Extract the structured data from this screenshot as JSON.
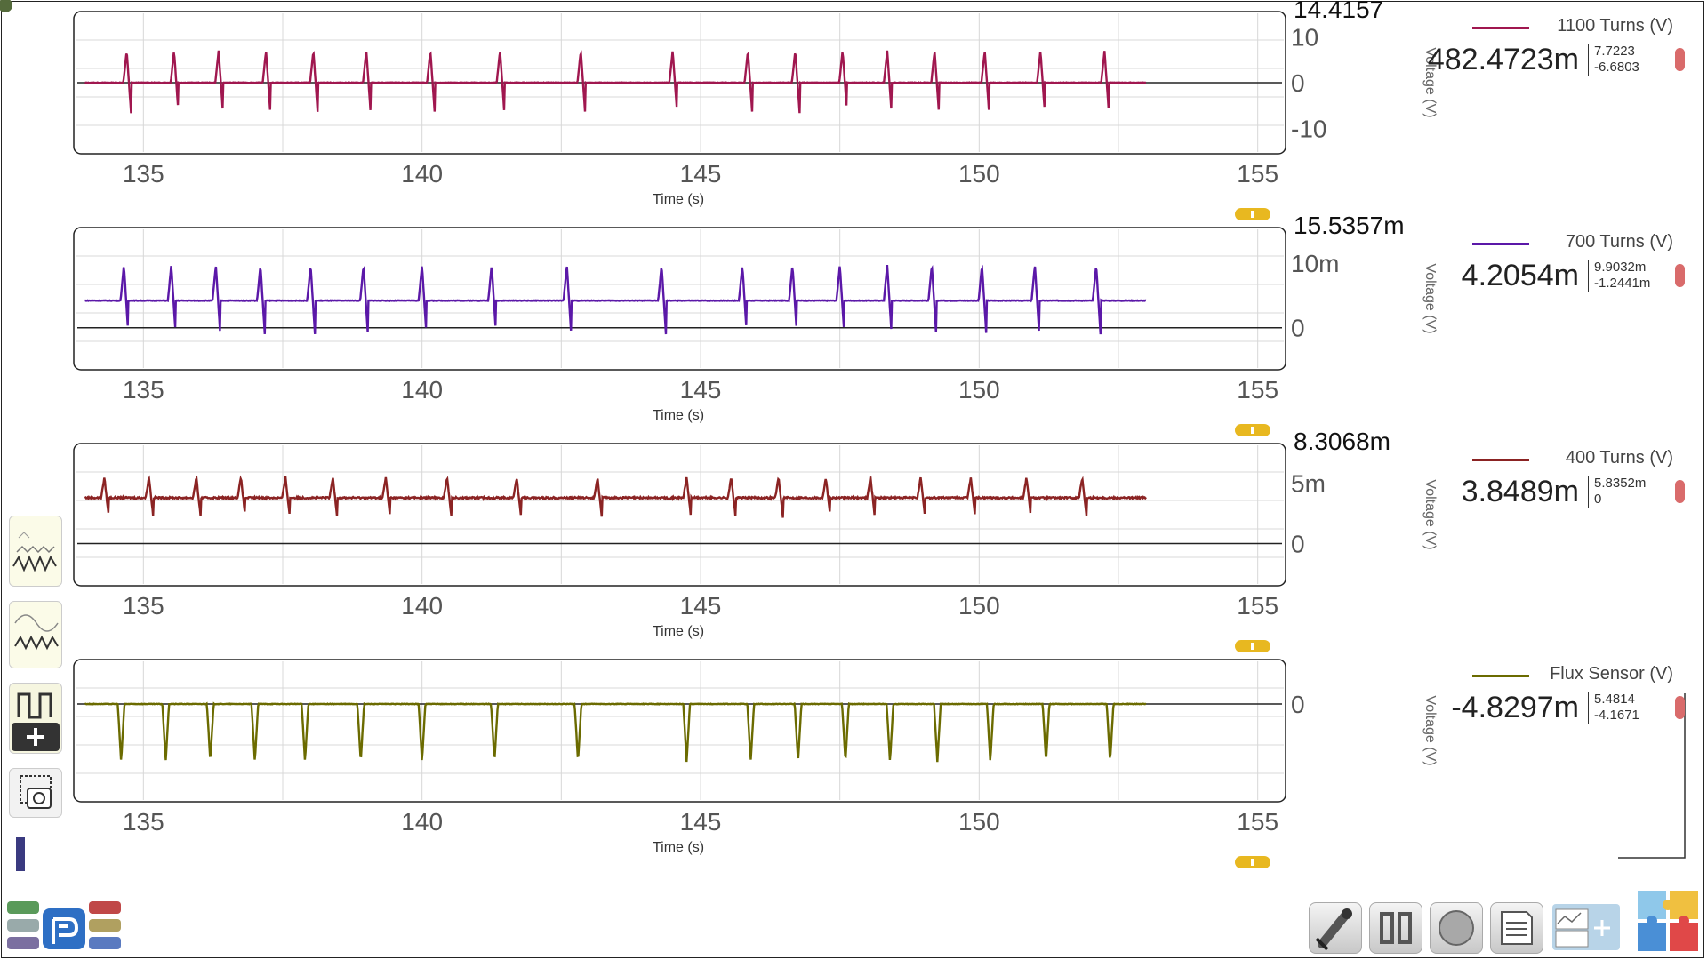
{
  "x_axis": {
    "label": "Time (s)",
    "ticks": [
      "135",
      "140",
      "145",
      "150",
      "155"
    ],
    "xlim": [
      133.75,
      155.5
    ]
  },
  "y_axis_title": "Voltage (V)",
  "charts": [
    {
      "name": "1100 Turns (V)",
      "color": "#a0174f",
      "max_label": "14.4157",
      "y_ticks": [
        "10",
        "0",
        "-10"
      ],
      "y_tick_values": [
        10,
        0,
        -10
      ],
      "ylim": [
        -15.5,
        15.5
      ],
      "reading": "482.4723m",
      "max": "7.7223",
      "min": "-6.6803"
    },
    {
      "name": "700 Turns (V)",
      "color": "#5b18a8",
      "max_label": "15.5357m",
      "y_ticks": [
        "10m",
        "0"
      ],
      "y_tick_values": [
        0.01,
        0
      ],
      "ylim": [
        -0.0065,
        0.0155
      ],
      "reading": "4.2054m",
      "max": "9.9032m",
      "min": "-1.2441m"
    },
    {
      "name": "400 Turns (V)",
      "color": "#8b2323",
      "max_label": "8.3068m",
      "y_ticks": [
        "5m",
        "0"
      ],
      "y_tick_values": [
        0.005,
        0
      ],
      "ylim": [
        -0.0035,
        0.0083
      ],
      "reading": "3.8489m",
      "max": "5.8352m",
      "min": "0"
    },
    {
      "name": "Flux Sensor (V)",
      "color": "#6b6b00",
      "max_label": "",
      "y_ticks": [
        "0"
      ],
      "y_tick_values": [
        0
      ],
      "ylim": [
        -2.2,
        1.0
      ],
      "reading": "-4.8297m",
      "max": "5.4814",
      "min": "-4.1671"
    }
  ],
  "chart_data": [
    {
      "type": "line",
      "xlabel": "Time (s)",
      "ylabel": "Voltage (V)",
      "series": [
        {
          "name": "1100 Turns (V)",
          "baseline": 0.0,
          "spike_amplitude": 7.0
        }
      ],
      "xlim": [
        133.75,
        155.5
      ],
      "ylim": [
        -15.5,
        15.5
      ],
      "data_end": 153.0,
      "spike_times": [
        134.7,
        135.55,
        136.35,
        137.2,
        138.05,
        139.0,
        140.15,
        141.4,
        142.85,
        144.5,
        145.85,
        146.7,
        147.55,
        148.35,
        149.2,
        150.1,
        151.1,
        152.25
      ],
      "grid": true
    },
    {
      "type": "line",
      "xlabel": "Time (s)",
      "ylabel": "Voltage (V)",
      "series": [
        {
          "name": "700 Turns (V)",
          "baseline": 0.0042,
          "spike_amplitude": 0.0055
        }
      ],
      "xlim": [
        133.75,
        155.5
      ],
      "ylim": [
        -0.0065,
        0.0155
      ],
      "data_end": 153.0,
      "spike_times": [
        134.65,
        135.5,
        136.3,
        137.1,
        138.0,
        138.95,
        140.0,
        141.25,
        142.6,
        144.3,
        145.75,
        146.65,
        147.5,
        148.35,
        149.15,
        150.05,
        151.0,
        152.1
      ],
      "grid": true
    },
    {
      "type": "line",
      "xlabel": "Time (s)",
      "ylabel": "Voltage (V)",
      "series": [
        {
          "name": "400 Turns (V)",
          "baseline": 0.0038,
          "spike_amplitude": 0.0017
        }
      ],
      "xlim": [
        133.75,
        155.5
      ],
      "ylim": [
        -0.0035,
        0.0083
      ],
      "data_end": 153.0,
      "spike_times": [
        134.3,
        135.1,
        135.95,
        136.75,
        137.55,
        138.4,
        139.35,
        140.45,
        141.7,
        143.15,
        144.75,
        145.55,
        146.4,
        147.25,
        148.05,
        148.95,
        149.85,
        150.85,
        151.85
      ],
      "grid": true
    },
    {
      "type": "line",
      "xlabel": "Time (s)",
      "ylabel": "Voltage (V)",
      "series": [
        {
          "name": "Flux Sensor (V)",
          "baseline": 0.0,
          "dip_depth": -1.3
        }
      ],
      "xlim": [
        133.75,
        155.5
      ],
      "ylim": [
        -2.2,
        1.0
      ],
      "data_end": 153.0,
      "dip_times": [
        134.6,
        135.4,
        136.2,
        137.0,
        137.9,
        138.9,
        140.0,
        141.3,
        142.8,
        144.75,
        145.9,
        146.75,
        147.6,
        148.4,
        149.25,
        150.2,
        151.2,
        152.35
      ],
      "grid": true
    }
  ],
  "icons": {
    "left_tools": [
      "waveform-overlay-icon",
      "sine-wave-icon",
      "square-wave-add-icon",
      "screenshot-icon"
    ],
    "bottom": [
      "sensor-tool-icon",
      "pause-icon",
      "record-icon",
      "notes-icon",
      "graph-add-icon",
      "puzzle-icon"
    ]
  }
}
